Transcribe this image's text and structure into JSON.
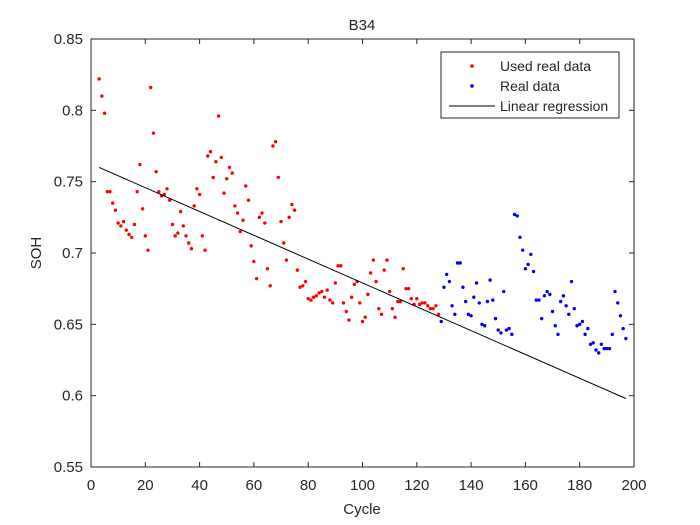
{
  "chart_data": {
    "type": "scatter",
    "title": "B34",
    "xlabel": "Cycle",
    "ylabel": "SOH",
    "xlim": [
      0,
      200
    ],
    "ylim": [
      0.55,
      0.85
    ],
    "xticks": [
      "0",
      "20",
      "40",
      "60",
      "80",
      "100",
      "120",
      "140",
      "160",
      "180",
      "200"
    ],
    "yticks": [
      "0.55",
      "0.6",
      "0.65",
      "0.7",
      "0.75",
      "0.8",
      "0.85"
    ],
    "grid": false,
    "legend_position": "top-right",
    "series": [
      {
        "name": "Used real data",
        "kind": "markers",
        "color": "#ff0000",
        "points": [
          [
            3,
            0.822
          ],
          [
            4,
            0.81
          ],
          [
            5,
            0.798
          ],
          [
            6,
            0.743
          ],
          [
            7,
            0.743
          ],
          [
            8,
            0.735
          ],
          [
            9,
            0.73
          ],
          [
            10,
            0.721
          ],
          [
            11,
            0.719
          ],
          [
            12,
            0.722
          ],
          [
            13,
            0.716
          ],
          [
            14,
            0.713
          ],
          [
            15,
            0.711
          ],
          [
            16,
            0.72
          ],
          [
            17,
            0.743
          ],
          [
            18,
            0.762
          ],
          [
            19,
            0.731
          ],
          [
            20,
            0.712
          ],
          [
            21,
            0.702
          ],
          [
            22,
            0.816
          ],
          [
            23,
            0.784
          ],
          [
            24,
            0.757
          ],
          [
            25,
            0.743
          ],
          [
            26,
            0.74
          ],
          [
            27,
            0.741
          ],
          [
            28,
            0.745
          ],
          [
            29,
            0.737
          ],
          [
            30,
            0.72
          ],
          [
            31,
            0.712
          ],
          [
            32,
            0.714
          ],
          [
            33,
            0.729
          ],
          [
            34,
            0.719
          ],
          [
            35,
            0.712
          ],
          [
            36,
            0.707
          ],
          [
            37,
            0.703
          ],
          [
            38,
            0.733
          ],
          [
            39,
            0.745
          ],
          [
            40,
            0.741
          ],
          [
            41,
            0.712
          ],
          [
            42,
            0.702
          ],
          [
            43,
            0.768
          ],
          [
            44,
            0.771
          ],
          [
            45,
            0.753
          ],
          [
            46,
            0.764
          ],
          [
            47,
            0.796
          ],
          [
            48,
            0.767
          ],
          [
            49,
            0.742
          ],
          [
            50,
            0.752
          ],
          [
            51,
            0.76
          ],
          [
            52,
            0.756
          ],
          [
            53,
            0.733
          ],
          [
            54,
            0.728
          ],
          [
            55,
            0.715
          ],
          [
            56,
            0.723
          ],
          [
            57,
            0.747
          ],
          [
            58,
            0.737
          ],
          [
            59,
            0.705
          ],
          [
            60,
            0.694
          ],
          [
            61,
            0.682
          ],
          [
            62,
            0.725
          ],
          [
            63,
            0.728
          ],
          [
            64,
            0.721
          ],
          [
            65,
            0.689
          ],
          [
            66,
            0.677
          ],
          [
            67,
            0.775
          ],
          [
            68,
            0.778
          ],
          [
            69,
            0.753
          ],
          [
            70,
            0.722
          ],
          [
            71,
            0.707
          ],
          [
            72,
            0.695
          ],
          [
            73,
            0.725
          ],
          [
            74,
            0.734
          ],
          [
            75,
            0.73
          ],
          [
            76,
            0.688
          ],
          [
            77,
            0.676
          ],
          [
            78,
            0.677
          ],
          [
            79,
            0.68
          ],
          [
            80,
            0.668
          ],
          [
            81,
            0.667
          ],
          [
            82,
            0.669
          ],
          [
            83,
            0.67
          ],
          [
            84,
            0.672
          ],
          [
            85,
            0.673
          ],
          [
            86,
            0.669
          ],
          [
            87,
            0.674
          ],
          [
            88,
            0.667
          ],
          [
            89,
            0.665
          ],
          [
            90,
            0.679
          ],
          [
            91,
            0.691
          ],
          [
            92,
            0.691
          ],
          [
            93,
            0.665
          ],
          [
            94,
            0.659
          ],
          [
            95,
            0.653
          ],
          [
            96,
            0.669
          ],
          [
            97,
            0.678
          ],
          [
            98,
            0.68
          ],
          [
            99,
            0.665
          ],
          [
            100,
            0.652
          ],
          [
            101,
            0.655
          ],
          [
            102,
            0.671
          ],
          [
            103,
            0.686
          ],
          [
            104,
            0.695
          ],
          [
            105,
            0.68
          ],
          [
            106,
            0.661
          ],
          [
            107,
            0.657
          ],
          [
            108,
            0.688
          ],
          [
            109,
            0.695
          ],
          [
            110,
            0.673
          ],
          [
            111,
            0.661
          ],
          [
            112,
            0.655
          ],
          [
            113,
            0.666
          ],
          [
            114,
            0.666
          ],
          [
            115,
            0.689
          ],
          [
            116,
            0.675
          ],
          [
            117,
            0.675
          ],
          [
            118,
            0.668
          ],
          [
            119,
            0.664
          ],
          [
            120,
            0.668
          ],
          [
            121,
            0.664
          ],
          [
            122,
            0.665
          ],
          [
            123,
            0.665
          ],
          [
            124,
            0.663
          ],
          [
            125,
            0.661
          ],
          [
            126,
            0.661
          ],
          [
            127,
            0.663
          ],
          [
            128,
            0.657
          ]
        ]
      },
      {
        "name": "Real data",
        "kind": "markers",
        "color": "#0000ff",
        "points": [
          [
            129,
            0.652
          ],
          [
            130,
            0.676
          ],
          [
            131,
            0.685
          ],
          [
            132,
            0.68
          ],
          [
            133,
            0.663
          ],
          [
            134,
            0.657
          ],
          [
            135,
            0.693
          ],
          [
            136,
            0.693
          ],
          [
            137,
            0.676
          ],
          [
            138,
            0.666
          ],
          [
            139,
            0.657
          ],
          [
            140,
            0.656
          ],
          [
            141,
            0.669
          ],
          [
            142,
            0.679
          ],
          [
            143,
            0.665
          ],
          [
            144,
            0.65
          ],
          [
            145,
            0.649
          ],
          [
            146,
            0.666
          ],
          [
            147,
            0.681
          ],
          [
            148,
            0.667
          ],
          [
            149,
            0.654
          ],
          [
            150,
            0.646
          ],
          [
            151,
            0.644
          ],
          [
            152,
            0.673
          ],
          [
            153,
            0.646
          ],
          [
            154,
            0.647
          ],
          [
            155,
            0.643
          ],
          [
            156,
            0.727
          ],
          [
            157,
            0.726
          ],
          [
            158,
            0.711
          ],
          [
            159,
            0.702
          ],
          [
            160,
            0.689
          ],
          [
            161,
            0.692
          ],
          [
            162,
            0.699
          ],
          [
            163,
            0.687
          ],
          [
            164,
            0.667
          ],
          [
            165,
            0.667
          ],
          [
            166,
            0.654
          ],
          [
            167,
            0.67
          ],
          [
            168,
            0.673
          ],
          [
            169,
            0.671
          ],
          [
            170,
            0.659
          ],
          [
            171,
            0.649
          ],
          [
            172,
            0.643
          ],
          [
            173,
            0.666
          ],
          [
            174,
            0.67
          ],
          [
            175,
            0.663
          ],
          [
            176,
            0.657
          ],
          [
            177,
            0.68
          ],
          [
            178,
            0.661
          ],
          [
            179,
            0.649
          ],
          [
            180,
            0.65
          ],
          [
            181,
            0.652
          ],
          [
            182,
            0.643
          ],
          [
            183,
            0.647
          ],
          [
            184,
            0.636
          ],
          [
            185,
            0.637
          ],
          [
            186,
            0.632
          ],
          [
            187,
            0.63
          ],
          [
            188,
            0.636
          ],
          [
            189,
            0.633
          ],
          [
            190,
            0.633
          ],
          [
            191,
            0.633
          ],
          [
            192,
            0.643
          ],
          [
            193,
            0.673
          ],
          [
            194,
            0.665
          ],
          [
            195,
            0.656
          ],
          [
            196,
            0.647
          ],
          [
            197,
            0.64
          ]
        ]
      },
      {
        "name": "Linear regression",
        "kind": "line",
        "color": "#000000",
        "points": [
          [
            3,
            0.76
          ],
          [
            197,
            0.598
          ]
        ]
      }
    ]
  }
}
